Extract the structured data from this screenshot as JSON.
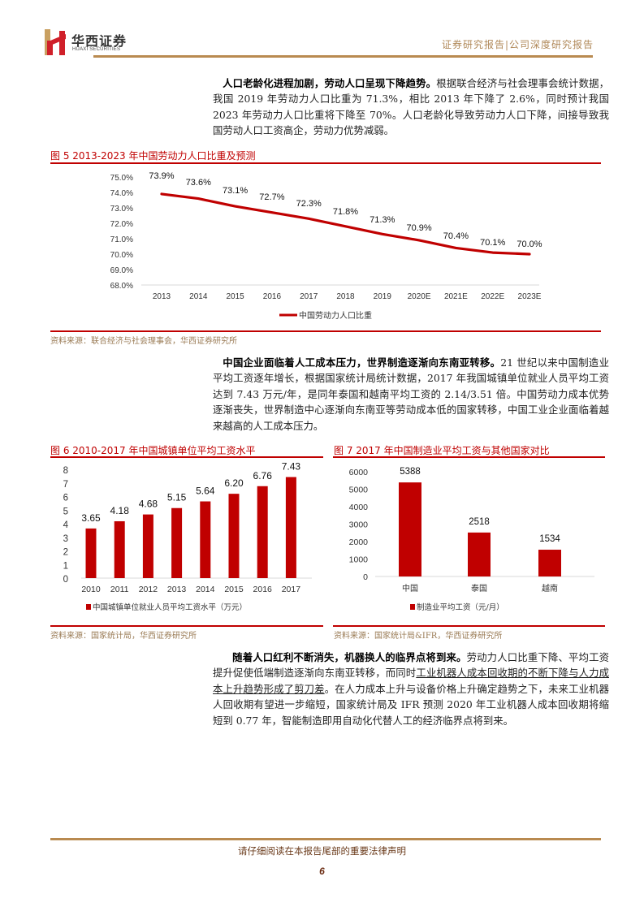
{
  "header": {
    "logo_cn": "华西证券",
    "logo_en": "HUAXI SECURITIES",
    "report_type": "证券研究报告|公司深度研究报告"
  },
  "paragraphs": [
    {
      "lead": "人口老龄化进程加剧，劳动人口呈现下降趋势。",
      "body": "根据联合经济与社会理事会统计数据，我国 2019 年劳动力人口比重为 71.3%，相比 2013 年下降了 2.6%，同时预计我国 2023 年劳动力人口比重将下降至 70%。人口老龄化导致劳动力人口下降，间接导致我国劳动人口工资高企，劳动力优势减弱。"
    },
    {
      "lead": "中国企业面临着人工成本压力，世界制造逐渐向东南亚转移。",
      "body": "21 世纪以来中国制造业平均工资逐年增长，根据国家统计局统计数据，2017 年我国城镇单位就业人员平均工资达到 7.43 万元/年，是同年泰国和越南平均工资的 2.14/3.51 倍。中国劳动力成本优势逐渐丧失，世界制造中心逐渐向东南亚等劳动成本低的国家转移，中国工业企业面临着越来越高的人工成本压力。"
    },
    {
      "lead": "随着人口红利不断消失，机器换人的临界点将到来。",
      "body_pre": "劳动力人口比重下降、平均工资提升促使低端制造逐渐向东南亚转移，而同时",
      "body_underline": "工业机器人成本回收期的不断下降与人力成本上升趋势形成了剪刀差",
      "body_post": "。在人力成本上升与设备价格上升确定趋势之下，未来工业机器人回收期有望进一步缩短，国家统计局及 IFR 预测 2020 年工业机器人成本回收期将缩短到 0.77 年，智能制造即用自动化代替人工的经济临界点将到来。"
    }
  ],
  "figures": {
    "fig5": {
      "title": "图 5   2013-2023 年中国劳动力人口比重及预测",
      "source": "资料来源：联合经济与社会理事会，华西证券研究所"
    },
    "fig6": {
      "title": "图 6   2010-2017 年中国城镇单位平均工资水平",
      "source": "资料来源：国家统计局，华西证券研究所"
    },
    "fig7": {
      "title": "图 7   2017 年中国制造业平均工资与其他国家对比",
      "source": "资料来源：国家统计局&IFR，华西证券研究所"
    }
  },
  "chart_data": [
    {
      "type": "line",
      "title": "2013-2023 年中国劳动力人口比重及预测",
      "categories": [
        "2013",
        "2014",
        "2015",
        "2016",
        "2017",
        "2018",
        "2019",
        "2020E",
        "2021E",
        "2022E",
        "2023E"
      ],
      "series": [
        {
          "name": "中国劳动力人口比重",
          "values": [
            73.9,
            73.6,
            73.1,
            72.7,
            72.3,
            71.8,
            71.3,
            70.9,
            70.4,
            70.1,
            70.0
          ]
        }
      ],
      "labels": [
        "73.9%",
        "73.6%",
        "73.1%",
        "72.7%",
        "72.3%",
        "71.8%",
        "71.3%",
        "70.9%",
        "70.4%",
        "70.1%",
        "70.0%"
      ],
      "y_ticks": [
        "75.0%",
        "74.0%",
        "73.0%",
        "72.0%",
        "71.0%",
        "70.0%",
        "69.0%",
        "68.0%"
      ],
      "ylim": [
        68,
        75
      ],
      "xlabel": "",
      "ylabel": "",
      "grid": false,
      "legend_position": "bottom",
      "color": "#c00000"
    },
    {
      "type": "bar",
      "title": "2010-2017 年中国城镇单位平均工资水平",
      "categories": [
        "2010",
        "2011",
        "2012",
        "2013",
        "2014",
        "2015",
        "2016",
        "2017"
      ],
      "series": [
        {
          "name": "中国城镇单位就业人员平均工资水平（万元）",
          "values": [
            3.65,
            4.18,
            4.68,
            5.15,
            5.64,
            6.2,
            6.76,
            7.43
          ]
        }
      ],
      "labels": [
        "3.65",
        "4.18",
        "4.68",
        "5.15",
        "5.64",
        "6.20",
        "6.76",
        "7.43"
      ],
      "y_ticks": [
        "8",
        "7",
        "6",
        "5",
        "4",
        "3",
        "2",
        "1",
        "0"
      ],
      "ylim": [
        0,
        8
      ],
      "xlabel": "",
      "ylabel": "",
      "grid": false,
      "legend_position": "bottom",
      "color": "#c00000"
    },
    {
      "type": "bar",
      "title": "2017 年中国制造业平均工资与其他国家对比",
      "categories": [
        "中国",
        "泰国",
        "越南"
      ],
      "series": [
        {
          "name": "制造业平均工资（元/月）",
          "values": [
            5388,
            2518,
            1534
          ]
        }
      ],
      "labels": [
        "5388",
        "2518",
        "1534"
      ],
      "y_ticks": [
        "6000",
        "5000",
        "4000",
        "3000",
        "2000",
        "1000",
        "0"
      ],
      "ylim": [
        0,
        6000
      ],
      "xlabel": "",
      "ylabel": "",
      "grid": false,
      "legend_position": "bottom",
      "color": "#c00000"
    }
  ],
  "footer": {
    "disclaimer": "请仔细阅读在本报告尾部的重要法律声明",
    "page_number": "6"
  }
}
